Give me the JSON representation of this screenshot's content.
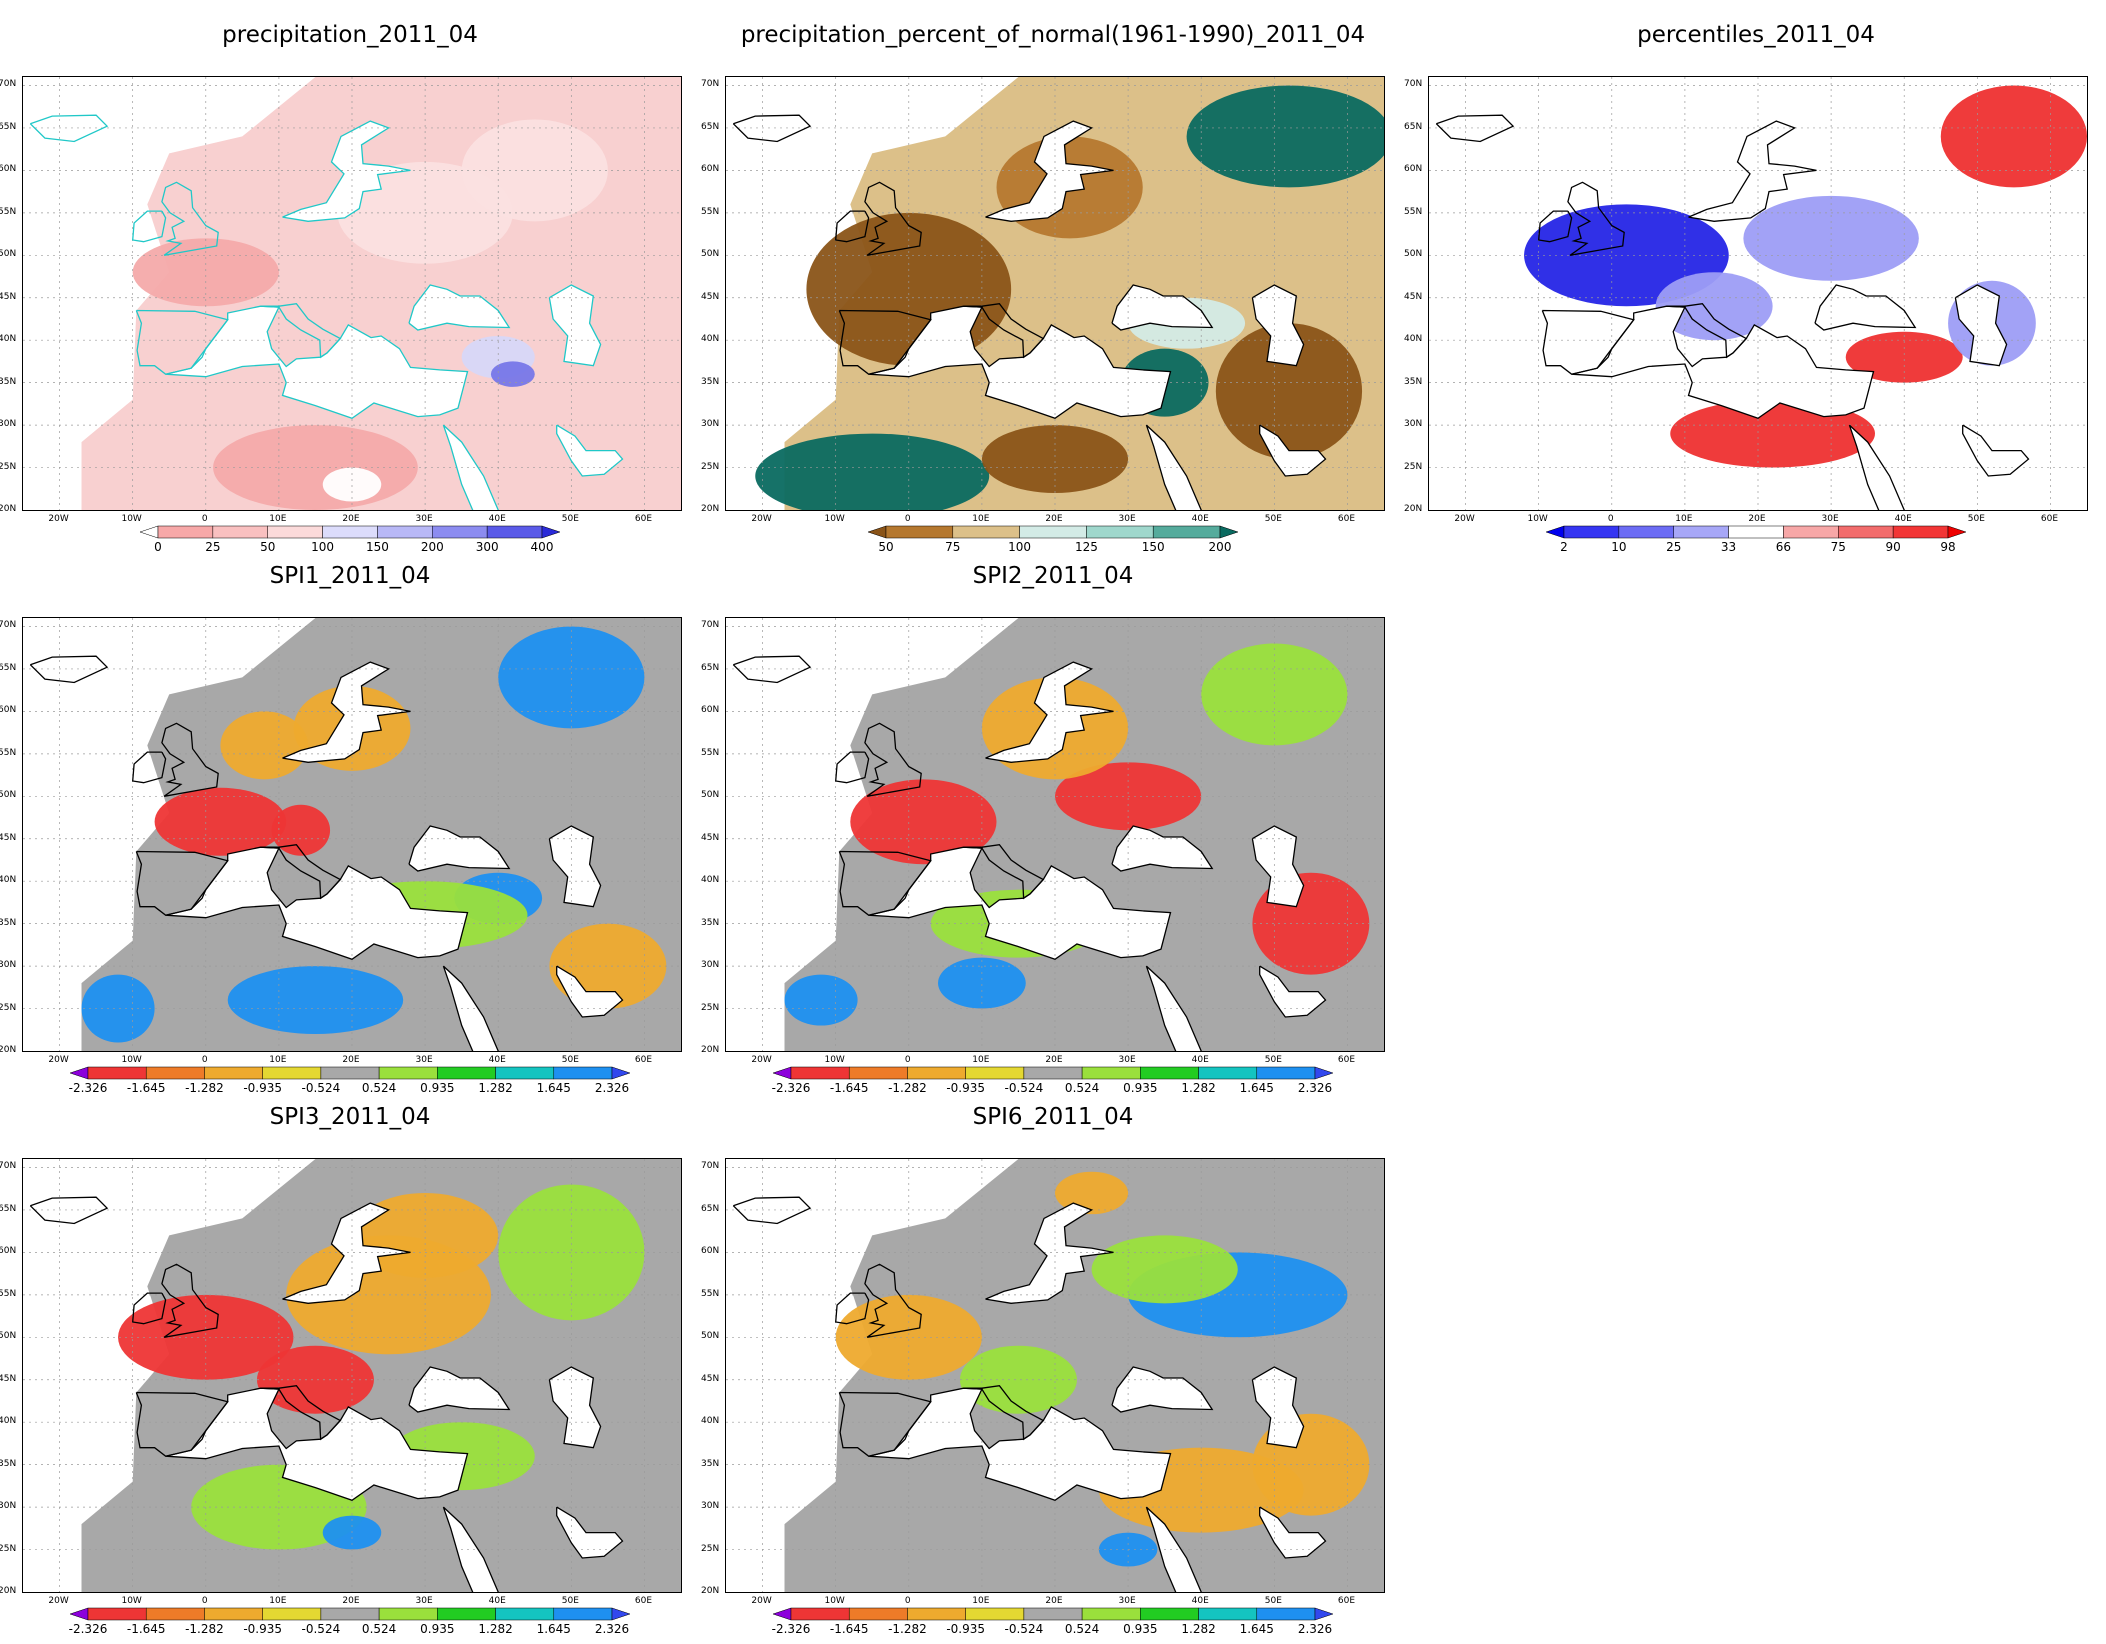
{
  "figure": {
    "lat_labels": [
      "70N",
      "65N",
      "60N",
      "55N",
      "50N",
      "45N",
      "40N",
      "35N",
      "30N",
      "25N",
      "20N"
    ],
    "lon_labels": [
      "20W",
      "10W",
      "0",
      "10E",
      "20E",
      "30E",
      "40E",
      "50E",
      "60E"
    ]
  },
  "panels": [
    {
      "id": "precip",
      "title": "precipitation_2011_04",
      "colorbar": {
        "labels": [
          "0",
          "25",
          "50",
          "100",
          "150",
          "200",
          "300",
          "400"
        ],
        "colors": [
          "#ffffff",
          "#f7a8a8",
          "#f9c0c0",
          "#fbdada",
          "#dcdcfb",
          "#b8b8f6",
          "#8c8cf0",
          "#5a5ae8",
          "#2a2ad8"
        ]
      },
      "palette": {
        "bg": "#f8d0d0",
        "a": "#f4aaaa",
        "b": "#fbe0e0",
        "c": "#d7d7f8",
        "d": "#7777e8",
        "e": "#ffffff",
        "coast": "#20c8c8"
      }
    },
    {
      "id": "pct",
      "title": "precipitation_percent_of_normal(1961-1990)_2011_04",
      "colorbar": {
        "labels": [
          "50",
          "75",
          "100",
          "125",
          "150",
          "200"
        ],
        "colors": [
          "#8a5418",
          "#b5782f",
          "#dcc089",
          "#d3ebe6",
          "#9fd7cc",
          "#55ab9c",
          "#0a6a60"
        ]
      },
      "palette": {
        "bg": "#dcc089",
        "a": "#8a5418",
        "b": "#b5782f",
        "c": "#d3ebe6",
        "d": "#0a6a60",
        "e": "#ffffff",
        "coast": "#000000"
      }
    },
    {
      "id": "pctl",
      "title": "percentiles_2011_04",
      "colorbar": {
        "labels": [
          "2",
          "10",
          "25",
          "33",
          "66",
          "75",
          "90",
          "98"
        ],
        "colors": [
          "#0000ee",
          "#3535f2",
          "#6c6cf4",
          "#a7a7f7",
          "#ffffff",
          "#f7a7a7",
          "#f26c6c",
          "#f23535",
          "#ee0000"
        ]
      },
      "palette": {
        "bg": "#ffffff",
        "a": "#ee3030",
        "b": "#f5a0a0",
        "c": "#9d9df6",
        "d": "#2525e6",
        "e": "#ffffff",
        "coast": "#000000"
      }
    },
    {
      "id": "spi1",
      "title": "SPI1_2011_04",
      "colorbar": {
        "labels": [
          "-2.326",
          "-1.645",
          "-1.282",
          "-0.935",
          "-0.524",
          "0.524",
          "0.935",
          "1.282",
          "1.645",
          "2.326"
        ],
        "colors": [
          "#8c00dc",
          "#ee3535",
          "#ee7b28",
          "#eeaa2e",
          "#e4d832",
          "#a8a8a8",
          "#9ae03c",
          "#22cc22",
          "#14c4c0",
          "#1e90f0",
          "#3248ee"
        ]
      },
      "palette": {
        "bg": "#a8a8a8",
        "a": "#ee3535",
        "b": "#eeaa2e",
        "c": "#9ae03c",
        "d": "#1e90f0",
        "e": "#ffffff",
        "coast": "#000000"
      }
    },
    {
      "id": "spi2",
      "title": "SPI2_2011_04",
      "colorbar": {
        "labels": [
          "-2.326",
          "-1.645",
          "-1.282",
          "-0.935",
          "-0.524",
          "0.524",
          "0.935",
          "1.282",
          "1.645",
          "2.326"
        ],
        "colors": [
          "#8c00dc",
          "#ee3535",
          "#ee7b28",
          "#eeaa2e",
          "#e4d832",
          "#a8a8a8",
          "#9ae03c",
          "#22cc22",
          "#14c4c0",
          "#1e90f0",
          "#3248ee"
        ]
      },
      "palette": {
        "bg": "#a8a8a8",
        "a": "#ee3535",
        "b": "#eeaa2e",
        "c": "#9ae03c",
        "d": "#1e90f0",
        "e": "#ffffff",
        "coast": "#000000"
      }
    },
    {
      "id": "spi3",
      "title": "SPI3_2011_04",
      "colorbar": {
        "labels": [
          "-2.326",
          "-1.645",
          "-1.282",
          "-0.935",
          "-0.524",
          "0.524",
          "0.935",
          "1.282",
          "1.645",
          "2.326"
        ],
        "colors": [
          "#8c00dc",
          "#ee3535",
          "#ee7b28",
          "#eeaa2e",
          "#e4d832",
          "#a8a8a8",
          "#9ae03c",
          "#22cc22",
          "#14c4c0",
          "#1e90f0",
          "#3248ee"
        ]
      },
      "palette": {
        "bg": "#a8a8a8",
        "a": "#ee3535",
        "b": "#eeaa2e",
        "c": "#9ae03c",
        "d": "#1e90f0",
        "e": "#ffffff",
        "coast": "#000000"
      }
    },
    {
      "id": "spi6",
      "title": "SPI6_2011_04",
      "colorbar": {
        "labels": [
          "-2.326",
          "-1.645",
          "-1.282",
          "-0.935",
          "-0.524",
          "0.524",
          "0.935",
          "1.282",
          "1.645",
          "2.326"
        ],
        "colors": [
          "#8c00dc",
          "#ee3535",
          "#ee7b28",
          "#eeaa2e",
          "#e4d832",
          "#a8a8a8",
          "#9ae03c",
          "#22cc22",
          "#14c4c0",
          "#1e90f0",
          "#3248ee"
        ]
      },
      "palette": {
        "bg": "#a8a8a8",
        "a": "#e4d832",
        "b": "#eeaa2e",
        "c": "#9ae03c",
        "d": "#1e90f0",
        "e": "#ffffff",
        "coast": "#000000"
      }
    }
  ]
}
